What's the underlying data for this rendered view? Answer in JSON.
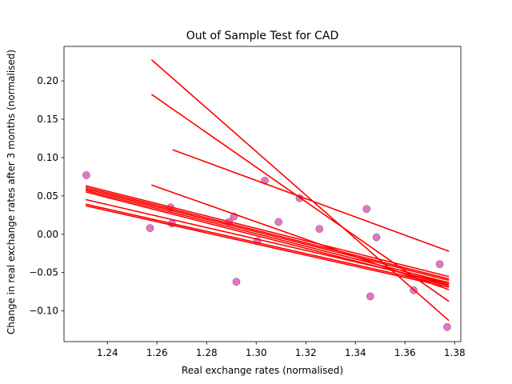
{
  "chart_data": {
    "type": "scatter",
    "title": "Out of Sample Test for CAD",
    "xlabel": "Real exchange rates (normalised)",
    "ylabel": "Change in real exchange rates after 3 months (normalised)",
    "xlim": [
      1.2225,
      1.3825
    ],
    "ylim": [
      -0.14,
      0.245
    ],
    "xticks": [
      1.24,
      1.26,
      1.28,
      1.3,
      1.32,
      1.34,
      1.36,
      1.38
    ],
    "xtick_labels": [
      "1.24",
      "1.26",
      "1.28",
      "1.30",
      "1.32",
      "1.34",
      "1.36",
      "1.38"
    ],
    "yticks": [
      -0.1,
      -0.05,
      0.0,
      0.05,
      0.1,
      0.15,
      0.2
    ],
    "ytick_labels": [
      "−0.10",
      "−0.05",
      "0.00",
      "0.05",
      "0.10",
      "0.15",
      "0.20"
    ],
    "colors": {
      "points": "#e377c2",
      "lines": "#ff0000"
    },
    "series": [
      {
        "name": "observations",
        "kind": "scatter",
        "points": [
          [
            1.2315,
            0.077
          ],
          [
            1.2572,
            0.008
          ],
          [
            1.2655,
            0.035
          ],
          [
            1.266,
            0.014
          ],
          [
            1.289,
            0.016
          ],
          [
            1.291,
            0.023
          ],
          [
            1.292,
            -0.062
          ],
          [
            1.3005,
            -0.009
          ],
          [
            1.3035,
            0.07
          ],
          [
            1.309,
            0.016
          ],
          [
            1.3175,
            0.047
          ],
          [
            1.3255,
            0.007
          ],
          [
            1.3445,
            0.033
          ],
          [
            1.346,
            -0.081
          ],
          [
            1.3485,
            -0.004
          ],
          [
            1.3635,
            -0.073
          ],
          [
            1.374,
            -0.039
          ],
          [
            1.377,
            -0.121
          ]
        ]
      },
      {
        "name": "fitted regression lines",
        "kind": "lines",
        "segments": [
          [
            1.258,
            0.227,
            1.3775,
            -0.112
          ],
          [
            1.258,
            0.182,
            1.3775,
            -0.087
          ],
          [
            1.2665,
            0.11,
            1.3775,
            -0.022
          ],
          [
            1.258,
            0.064,
            1.3775,
            -0.072
          ],
          [
            1.2315,
            0.063,
            1.3775,
            -0.055
          ],
          [
            1.2315,
            0.061,
            1.3775,
            -0.058
          ],
          [
            1.2315,
            0.059,
            1.3775,
            -0.06
          ],
          [
            1.2315,
            0.057,
            1.3775,
            -0.063
          ],
          [
            1.2315,
            0.055,
            1.3775,
            -0.066
          ],
          [
            1.2315,
            0.045,
            1.3775,
            -0.064
          ],
          [
            1.2315,
            0.039,
            1.3775,
            -0.067
          ],
          [
            1.2315,
            0.037,
            1.3775,
            -0.069
          ]
        ]
      }
    ]
  }
}
